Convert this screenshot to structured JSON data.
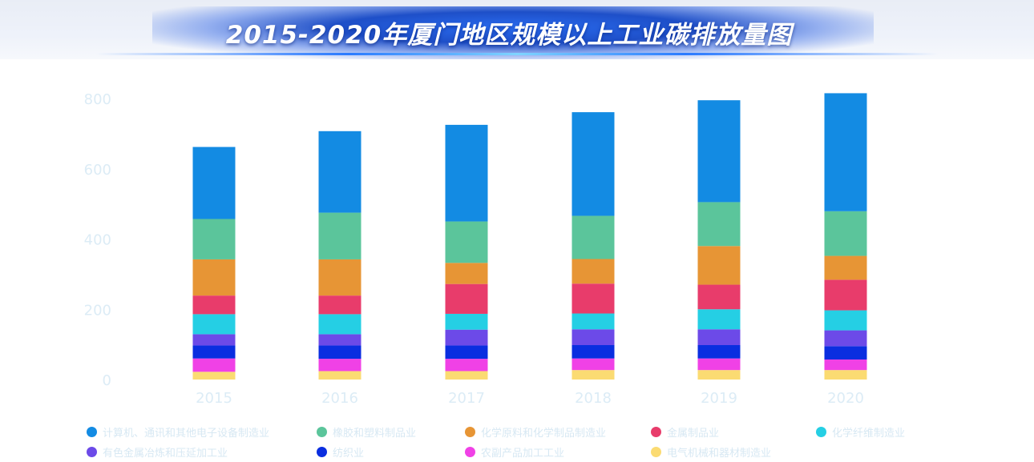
{
  "title": "2015-2020年厦门地区规模以上工业碳排放量图",
  "chart_data": {
    "type": "bar",
    "stacked": true,
    "categories": [
      "2015",
      "2016",
      "2017",
      "2018",
      "2019",
      "2020"
    ],
    "ylim": [
      0,
      800
    ],
    "yticks": [
      "0",
      "200",
      "400",
      "600",
      "800"
    ],
    "grid": false,
    "legend_position": "bottom",
    "series": [
      {
        "name": "电气机械和器材制造业",
        "color": "#fbdb72",
        "values": [
          22,
          24,
          24,
          27,
          27,
          27
        ]
      },
      {
        "name": "农副产品加工工业",
        "color": "#f041e6",
        "values": [
          38,
          35,
          35,
          33,
          33,
          30
        ]
      },
      {
        "name": "纺织业",
        "color": "#0a2ee0",
        "values": [
          37,
          38,
          38,
          38,
          38,
          38
        ]
      },
      {
        "name": "有色金属冶炼和压延加工业",
        "color": "#6c4ae8",
        "values": [
          32,
          32,
          45,
          45,
          45,
          45
        ]
      },
      {
        "name": "化学纤维制造业",
        "color": "#25cfe4",
        "values": [
          57,
          57,
          45,
          45,
          57,
          57
        ]
      },
      {
        "name": "金属制品业",
        "color": "#e83c6b",
        "values": [
          53,
          53,
          85,
          85,
          70,
          87
        ]
      },
      {
        "name": "化学原料和化学制品制造业",
        "color": "#e79535",
        "values": [
          103,
          103,
          60,
          70,
          110,
          68
        ]
      },
      {
        "name": "橡胶和塑料制品业",
        "color": "#5bc59b",
        "values": [
          115,
          133,
          118,
          123,
          125,
          127
        ]
      },
      {
        "name": "计算机、通讯和其他电子设备制造业",
        "color": "#138be3",
        "values": [
          205,
          232,
          275,
          295,
          290,
          336
        ]
      }
    ]
  },
  "legend": [
    {
      "label": "计算机、通讯和其他电子设备制造业",
      "color": "#138be3"
    },
    {
      "label": "橡胶和塑料制品业",
      "color": "#5bc59b"
    },
    {
      "label": "化学原料和化学制品制造业",
      "color": "#e79535"
    },
    {
      "label": "金属制品业",
      "color": "#e83c6b"
    },
    {
      "label": "化学纤维制造业",
      "color": "#25cfe4"
    },
    {
      "label": "有色金属冶炼和压延加工业",
      "color": "#6c4ae8"
    },
    {
      "label": "纺织业",
      "color": "#0a2ee0"
    },
    {
      "label": "农副产品加工工业",
      "color": "#f041e6"
    },
    {
      "label": "电气机械和器材制造业",
      "color": "#fbdb72"
    }
  ]
}
